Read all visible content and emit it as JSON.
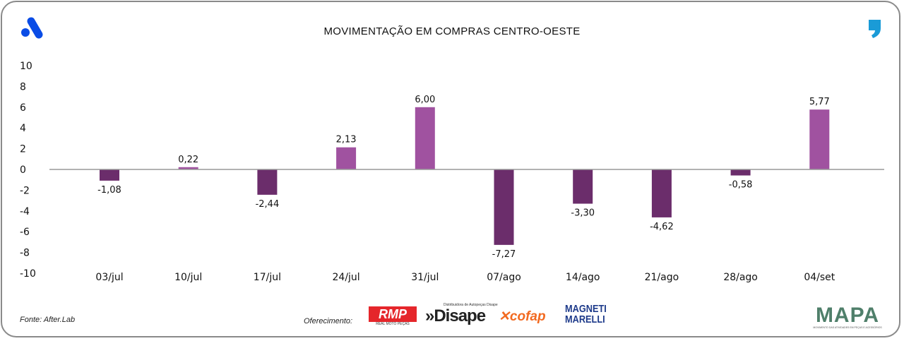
{
  "header": {
    "title": "MOVIMENTAÇÃO EM COMPRAS CENTRO-OESTE",
    "logo_left_icon": "after-lab-logo",
    "logo_right_icon": "comma-logo"
  },
  "chart_data": {
    "type": "bar",
    "title": "MOVIMENTAÇÃO EM COMPRAS CENTRO-OESTE",
    "categories": [
      "03/jul",
      "10/jul",
      "17/jul",
      "24/jul",
      "31/jul",
      "07/ago",
      "14/ago",
      "21/ago",
      "28/ago",
      "04/set"
    ],
    "values": [
      -1.08,
      0.22,
      -2.44,
      2.13,
      6.0,
      -7.27,
      -3.3,
      -4.62,
      -0.58,
      5.77
    ],
    "labels": [
      "-1,08",
      "0,22",
      "-2,44",
      "2,13",
      "6,00",
      "-7,27",
      "-3,30",
      "-4,62",
      "-0,58",
      "5,77"
    ],
    "ylim": [
      -10,
      10
    ],
    "yticks": [
      10,
      8,
      6,
      4,
      2,
      0,
      -2,
      -4,
      -6,
      -8,
      -10
    ],
    "grid": false,
    "colors": {
      "positive": "#a052a0",
      "negative": "#6b2d6b",
      "axis": "#999999"
    }
  },
  "footer": {
    "source": "Fonte: After.Lab",
    "sponsor_label": "Oferecimento:",
    "sponsors": [
      "RMP REAL MOTO PEÇAS",
      "Distribuidora de Autopeças Disape",
      "cofap",
      "MAGNETI MARELLI"
    ],
    "brand": "MAPA",
    "brand_tagline": "MOVIMENTO DAS ATIVIDADES EM PEÇAS E ACESSÓRIOS"
  }
}
